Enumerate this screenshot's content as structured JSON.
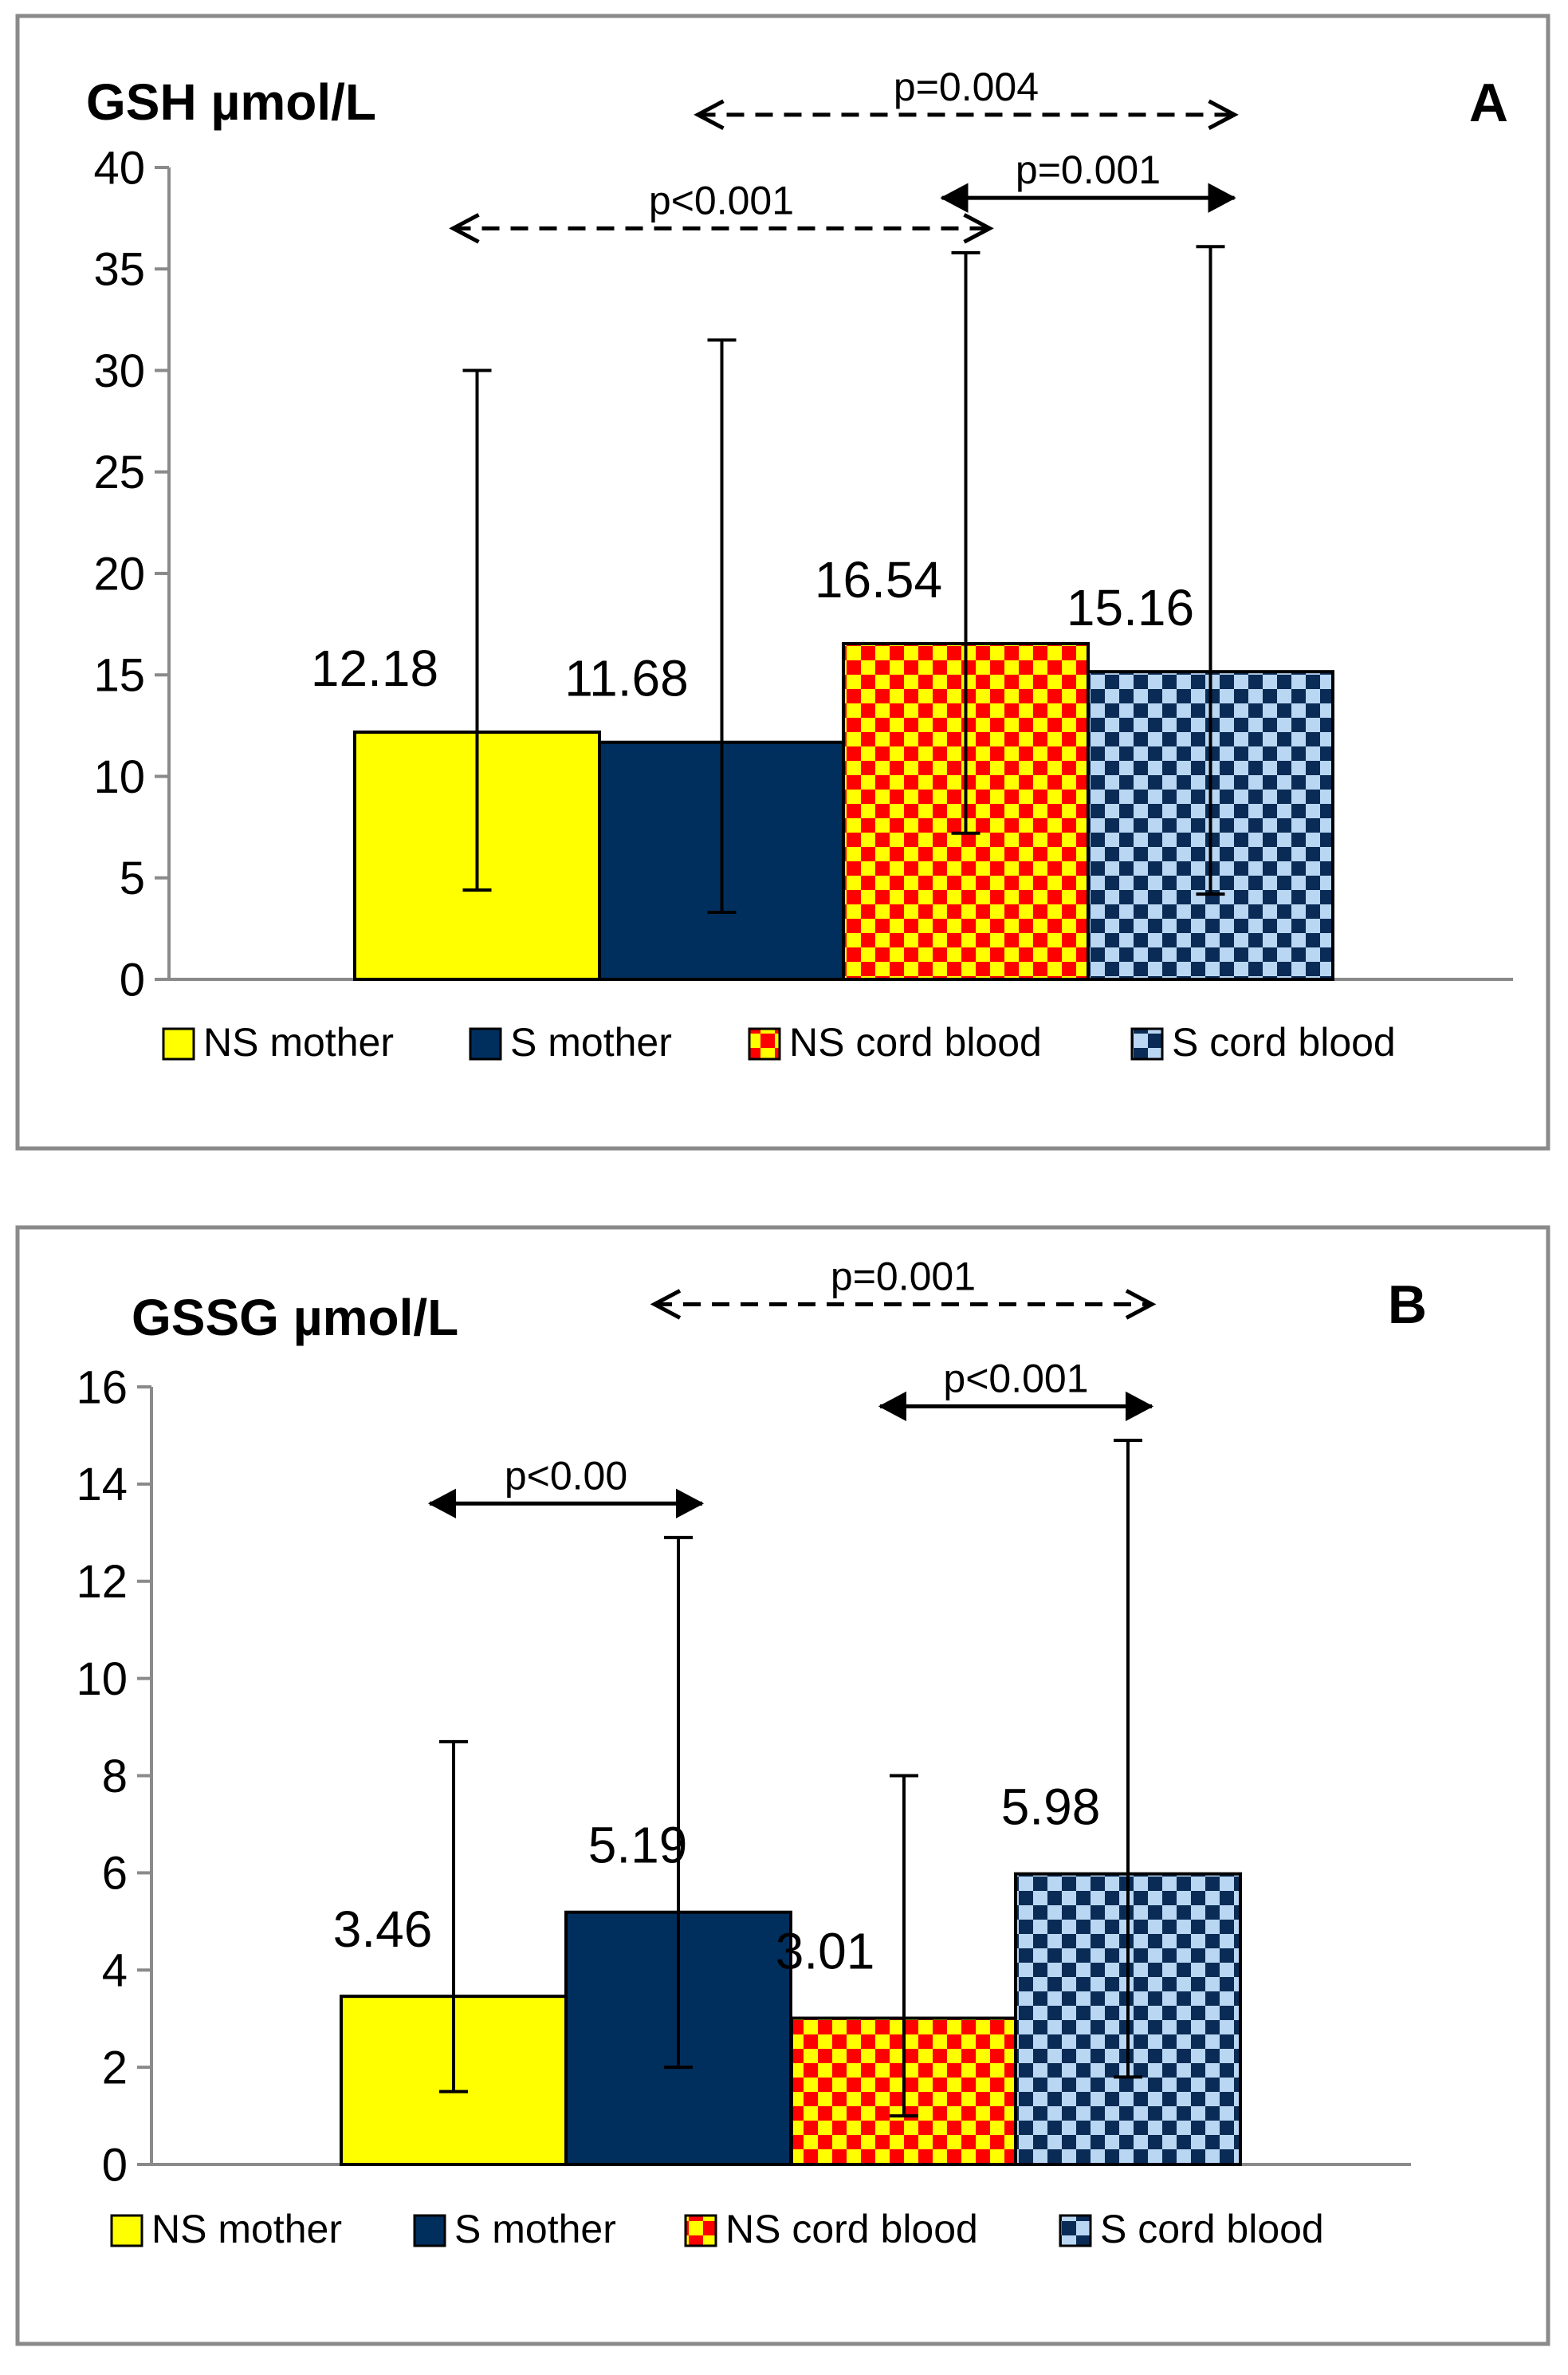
{
  "chart_data": [
    {
      "type": "bar",
      "panel_letter": "A",
      "title": "GSH µmol/L",
      "categories": [
        "NS mother",
        "S mother",
        "NS cord blood",
        "S cord blood"
      ],
      "values": [
        12.18,
        11.68,
        16.54,
        15.16
      ],
      "value_labels": [
        "12.18",
        "11.68",
        "16.54",
        "15.16"
      ],
      "error_bars": [
        [
          4.4,
          30.0
        ],
        [
          3.3,
          31.5
        ],
        [
          7.2,
          35.8
        ],
        [
          4.2,
          36.1
        ]
      ],
      "ylim": [
        0,
        40
      ],
      "yticks": [
        0,
        5,
        10,
        15,
        20,
        25,
        30,
        35,
        40
      ],
      "ytick_labels": [
        "0",
        "5",
        "10",
        "15",
        "20",
        "25",
        "30",
        "35",
        "40"
      ],
      "grid": false,
      "legend_position": "bottom",
      "legend": [
        "NS mother",
        "S mother",
        "NS cord blood",
        "S cord blood"
      ],
      "annotations": [
        {
          "text": "p=0.004",
          "from": 1,
          "to": 3,
          "style": "dashed",
          "y": 42.6
        },
        {
          "text": "p<0.001",
          "from": 0,
          "to": 2,
          "style": "dashed",
          "y": 37.0
        },
        {
          "text": "p=0.001",
          "from": 2,
          "to": 3,
          "style": "solid",
          "y": 38.5
        }
      ]
    },
    {
      "type": "bar",
      "panel_letter": "B",
      "title": "GSSG µmol/L",
      "categories": [
        "NS mother",
        "S mother",
        "NS cord blood",
        "S cord blood"
      ],
      "values": [
        3.46,
        5.19,
        3.01,
        5.98
      ],
      "value_labels": [
        "3.46",
        "5.19",
        "3.01",
        "5.98"
      ],
      "error_bars": [
        [
          1.5,
          8.7
        ],
        [
          2.0,
          12.9
        ],
        [
          1.0,
          8.0
        ],
        [
          1.8,
          14.9
        ]
      ],
      "ylim": [
        0,
        16
      ],
      "yticks": [
        0,
        2,
        4,
        6,
        8,
        10,
        12,
        14,
        16
      ],
      "ytick_labels": [
        "0",
        "2",
        "4",
        "6",
        "8",
        "10",
        "12",
        "14",
        "16"
      ],
      "grid": false,
      "legend_position": "bottom",
      "legend": [
        "NS mother",
        "S mother",
        "NS cord blood",
        "S cord blood"
      ],
      "annotations": [
        {
          "text": "p=0.001",
          "from": 1,
          "to": 3,
          "style": "dashed",
          "y": 17.7
        },
        {
          "text": "p<0.001",
          "from": 2,
          "to": 3,
          "style": "solid",
          "y": 15.6
        },
        {
          "text": "p<0.00",
          "from": 0,
          "to": 1,
          "style": "solid",
          "y": 13.6
        }
      ]
    }
  ],
  "series_colors": [
    "#ffff00",
    "#002f5e",
    "#ffe000",
    "#0a2b55"
  ],
  "pattern_colors": {
    "ns_cord_blood": [
      "#ffff00",
      "#ff0000"
    ],
    "s_cord_blood": [
      "#0a2b55",
      "#b9d6f2"
    ]
  }
}
